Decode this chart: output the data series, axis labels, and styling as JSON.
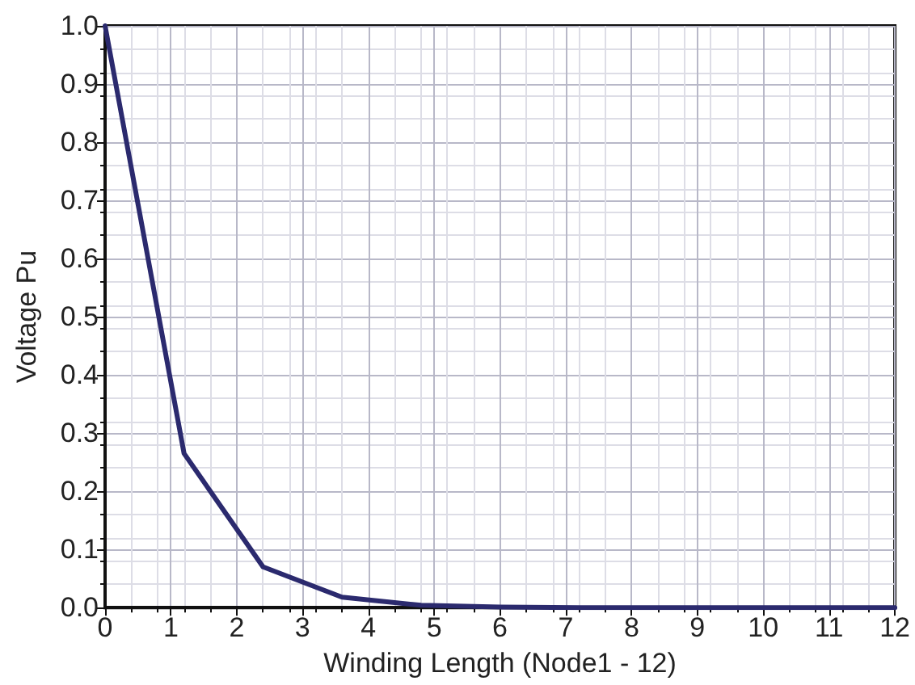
{
  "chart_data": {
    "type": "line",
    "xlabel": "Winding Length (Node1 - 12)",
    "ylabel": "Voltage Pu",
    "x": [
      0,
      1.2,
      2.4,
      3.6,
      4.8,
      6,
      7.2,
      8.4,
      9.6,
      10.8,
      12
    ],
    "series": [
      {
        "color": "#2b2a6e",
        "values": [
          1.0,
          0.265,
          0.07,
          0.018,
          0.004,
          0.001,
          0,
          0,
          0,
          0,
          0
        ]
      }
    ],
    "xlim": [
      0,
      12
    ],
    "xticks": [
      0,
      1,
      2,
      3,
      4,
      5,
      6,
      7,
      8,
      9,
      10,
      11,
      12
    ],
    "ylim": [
      0,
      1.0
    ],
    "yticks": [
      {
        "value": 0,
        "label": "0.0"
      },
      0.1,
      0.2,
      0.3,
      0.4,
      0.5,
      0.6,
      0.7,
      0.8,
      0.9,
      {
        "value": 1,
        "label": "1.0"
      }
    ],
    "grid": true,
    "marker": "none",
    "line_style": "solid"
  }
}
